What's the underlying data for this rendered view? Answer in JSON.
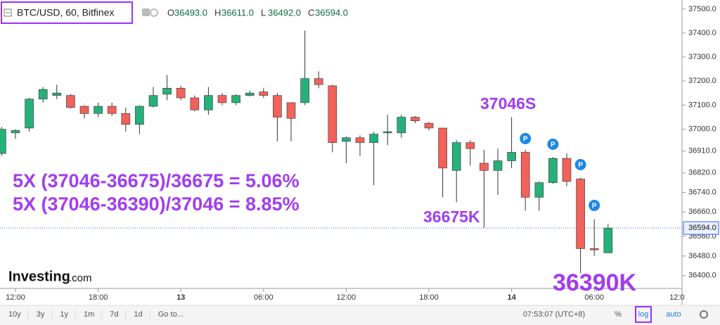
{
  "chart_data": {
    "type": "candlestick",
    "title": "BTC/USD, 60, Bitfinex",
    "legend_ohlc": [
      {
        "key": "O",
        "text": "36493.0"
      },
      {
        "key": "H",
        "text": "36611.0"
      },
      {
        "key": "L",
        "text": "36492.0"
      },
      {
        "key": "C",
        "text": "36594.0"
      }
    ],
    "categories": [
      null,
      "12:00",
      null,
      null,
      null,
      null,
      null,
      "18:00",
      null,
      null,
      null,
      null,
      null,
      "13",
      null,
      null,
      null,
      null,
      null,
      "06:00",
      null,
      null,
      null,
      null,
      null,
      "12:00",
      null,
      null,
      null,
      null,
      null,
      "18:00",
      null,
      null,
      null,
      null,
      null,
      "14",
      null,
      null,
      null,
      null,
      null,
      "06:00",
      null
    ],
    "x_axis_edge_label": "12:0",
    "open": [
      36900,
      36985,
      37005,
      37125,
      37140,
      37140,
      37095,
      37065,
      37095,
      37065,
      37020,
      37095,
      37145,
      37170,
      37130,
      37080,
      37140,
      37110,
      37140,
      37155,
      37140,
      37110,
      37110,
      37210,
      37180,
      36950,
      36965,
      36945,
      36985,
      36985,
      37050,
      37025,
      37005,
      36830,
      36945,
      36860,
      36830,
      36870,
      36905,
      36720,
      36780,
      36880,
      36795,
      36510,
      36493
    ],
    "high": [
      37010,
      37000,
      37130,
      37175,
      37185,
      37145,
      37100,
      37110,
      37110,
      37090,
      37100,
      37175,
      37225,
      37180,
      37140,
      37175,
      37150,
      37145,
      37160,
      37170,
      37150,
      37110,
      37410,
      37240,
      37185,
      36970,
      36975,
      36990,
      37060,
      37060,
      37055,
      37030,
      37005,
      36955,
      36955,
      36915,
      36920,
      37050,
      36915,
      36785,
      36885,
      36900,
      36800,
      36630,
      36611
    ],
    "low": [
      36890,
      36960,
      36990,
      37110,
      37125,
      37085,
      37045,
      37050,
      37055,
      36990,
      36980,
      37090,
      37120,
      37120,
      37075,
      37060,
      37100,
      37100,
      37135,
      37130,
      36950,
      36950,
      37100,
      37170,
      36905,
      36860,
      36890,
      36770,
      36935,
      36965,
      37025,
      36995,
      36720,
      36700,
      36850,
      36595,
      36730,
      36840,
      36665,
      36665,
      36775,
      36765,
      36410,
      36480,
      36492
    ],
    "close": [
      37000,
      36995,
      37125,
      37165,
      37150,
      37090,
      37065,
      37095,
      37065,
      37020,
      37095,
      37140,
      37170,
      37130,
      37080,
      37140,
      37110,
      37140,
      37150,
      37140,
      37050,
      37045,
      37210,
      37185,
      36945,
      36965,
      36945,
      36980,
      36990,
      37050,
      37035,
      37005,
      36840,
      36945,
      36920,
      36830,
      36870,
      36905,
      36720,
      36780,
      36880,
      36785,
      36510,
      36505,
      36594
    ],
    "up_color": "#26b07a",
    "down_color": "#f0625a",
    "ylim": [
      36348,
      37538
    ],
    "log_scale": true,
    "grid": false,
    "yticks": [
      {
        "value": 37500,
        "label": "37500.0"
      },
      {
        "value": 37400,
        "label": "37400.0"
      },
      {
        "value": 37300,
        "label": "37300.0"
      },
      {
        "value": 37200,
        "label": "37200.0"
      },
      {
        "value": 37100,
        "label": "37100.0"
      },
      {
        "value": 37000,
        "label": "37000.0"
      },
      {
        "value": 36910,
        "label": "36910.0"
      },
      {
        "value": 36820,
        "label": "36820.0"
      },
      {
        "value": 36740,
        "label": "36740.0"
      },
      {
        "value": 36660,
        "label": "36660.0"
      },
      {
        "value": 36560,
        "label": "36560.0"
      },
      {
        "value": 36480,
        "label": "36480.0"
      },
      {
        "value": 36400,
        "label": "36400.0"
      }
    ],
    "last_price_label": "36594.0",
    "annotations": [
      {
        "text": "37046S"
      },
      {
        "text": "36675K"
      },
      {
        "text": "36390K"
      },
      {
        "text": "5X (37046-36675)/36675 = 5.06%"
      },
      {
        "text": "5X (37046-36390)/37046 = 8.85%"
      }
    ],
    "markers": [
      "P",
      "P",
      "P",
      "P"
    ],
    "watermark": {
      "brand": "Investing",
      "suffix": ".com"
    }
  },
  "toolbar": {
    "ranges": [
      "10y",
      "3y",
      "1y",
      "1m",
      "7d",
      "1d"
    ],
    "goto": "Go to...",
    "clock": "07:53:07 (UTC+8)",
    "percent": "%",
    "log": "log",
    "auto": "auto"
  }
}
